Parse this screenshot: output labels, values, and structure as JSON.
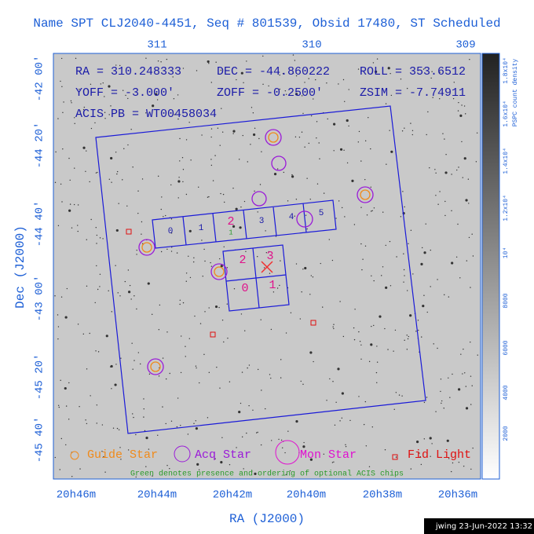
{
  "title": "Name SPT CLJ2040-4451, Seq # 801539, Obsid 17480, ST Scheduled",
  "info": [
    "RA = 310.248333",
    "DEC = -44.860222",
    "ROLL = 353.6512",
    "YOFF = -3.000'",
    "ZOFF = -0.2500'",
    "ZSIM = -7.74911",
    "ACIS PB = WT00458034"
  ],
  "axes": {
    "top_ticks": [
      "311",
      "310",
      "309"
    ],
    "left_ticks": [
      "-42 00'",
      "-44 20'",
      "-44 40'",
      "-43 00'",
      "-45 20'",
      "-45 40'"
    ],
    "bottom_ticks": [
      "20h46m",
      "20h44m",
      "20h42m",
      "20h40m",
      "20h38m",
      "20h36m"
    ],
    "x_label": "RA (J2000)",
    "y_label": "Dec (J2000)"
  },
  "chips": {
    "spectroscopy": [
      "0",
      "1",
      "2",
      "3",
      "4",
      "5"
    ],
    "imaging": [
      "2",
      "3",
      "0",
      "1"
    ],
    "optional": "1"
  },
  "legend": [
    "Guide Star",
    "Acq Star",
    "Mon Star",
    "Fid Light"
  ],
  "note": "Green denotes presence and ordering of optional ACIS chips",
  "colorbar": {
    "ticks": [
      "2000",
      "4000",
      "6000",
      "8000",
      "10⁴",
      "1.2x10⁴",
      "1.4x10⁴",
      "1.6x10⁴",
      "1.8x10⁴"
    ],
    "label": "PSPC count density"
  },
  "footer": "jwing 23-Jun-2022 13:32"
}
